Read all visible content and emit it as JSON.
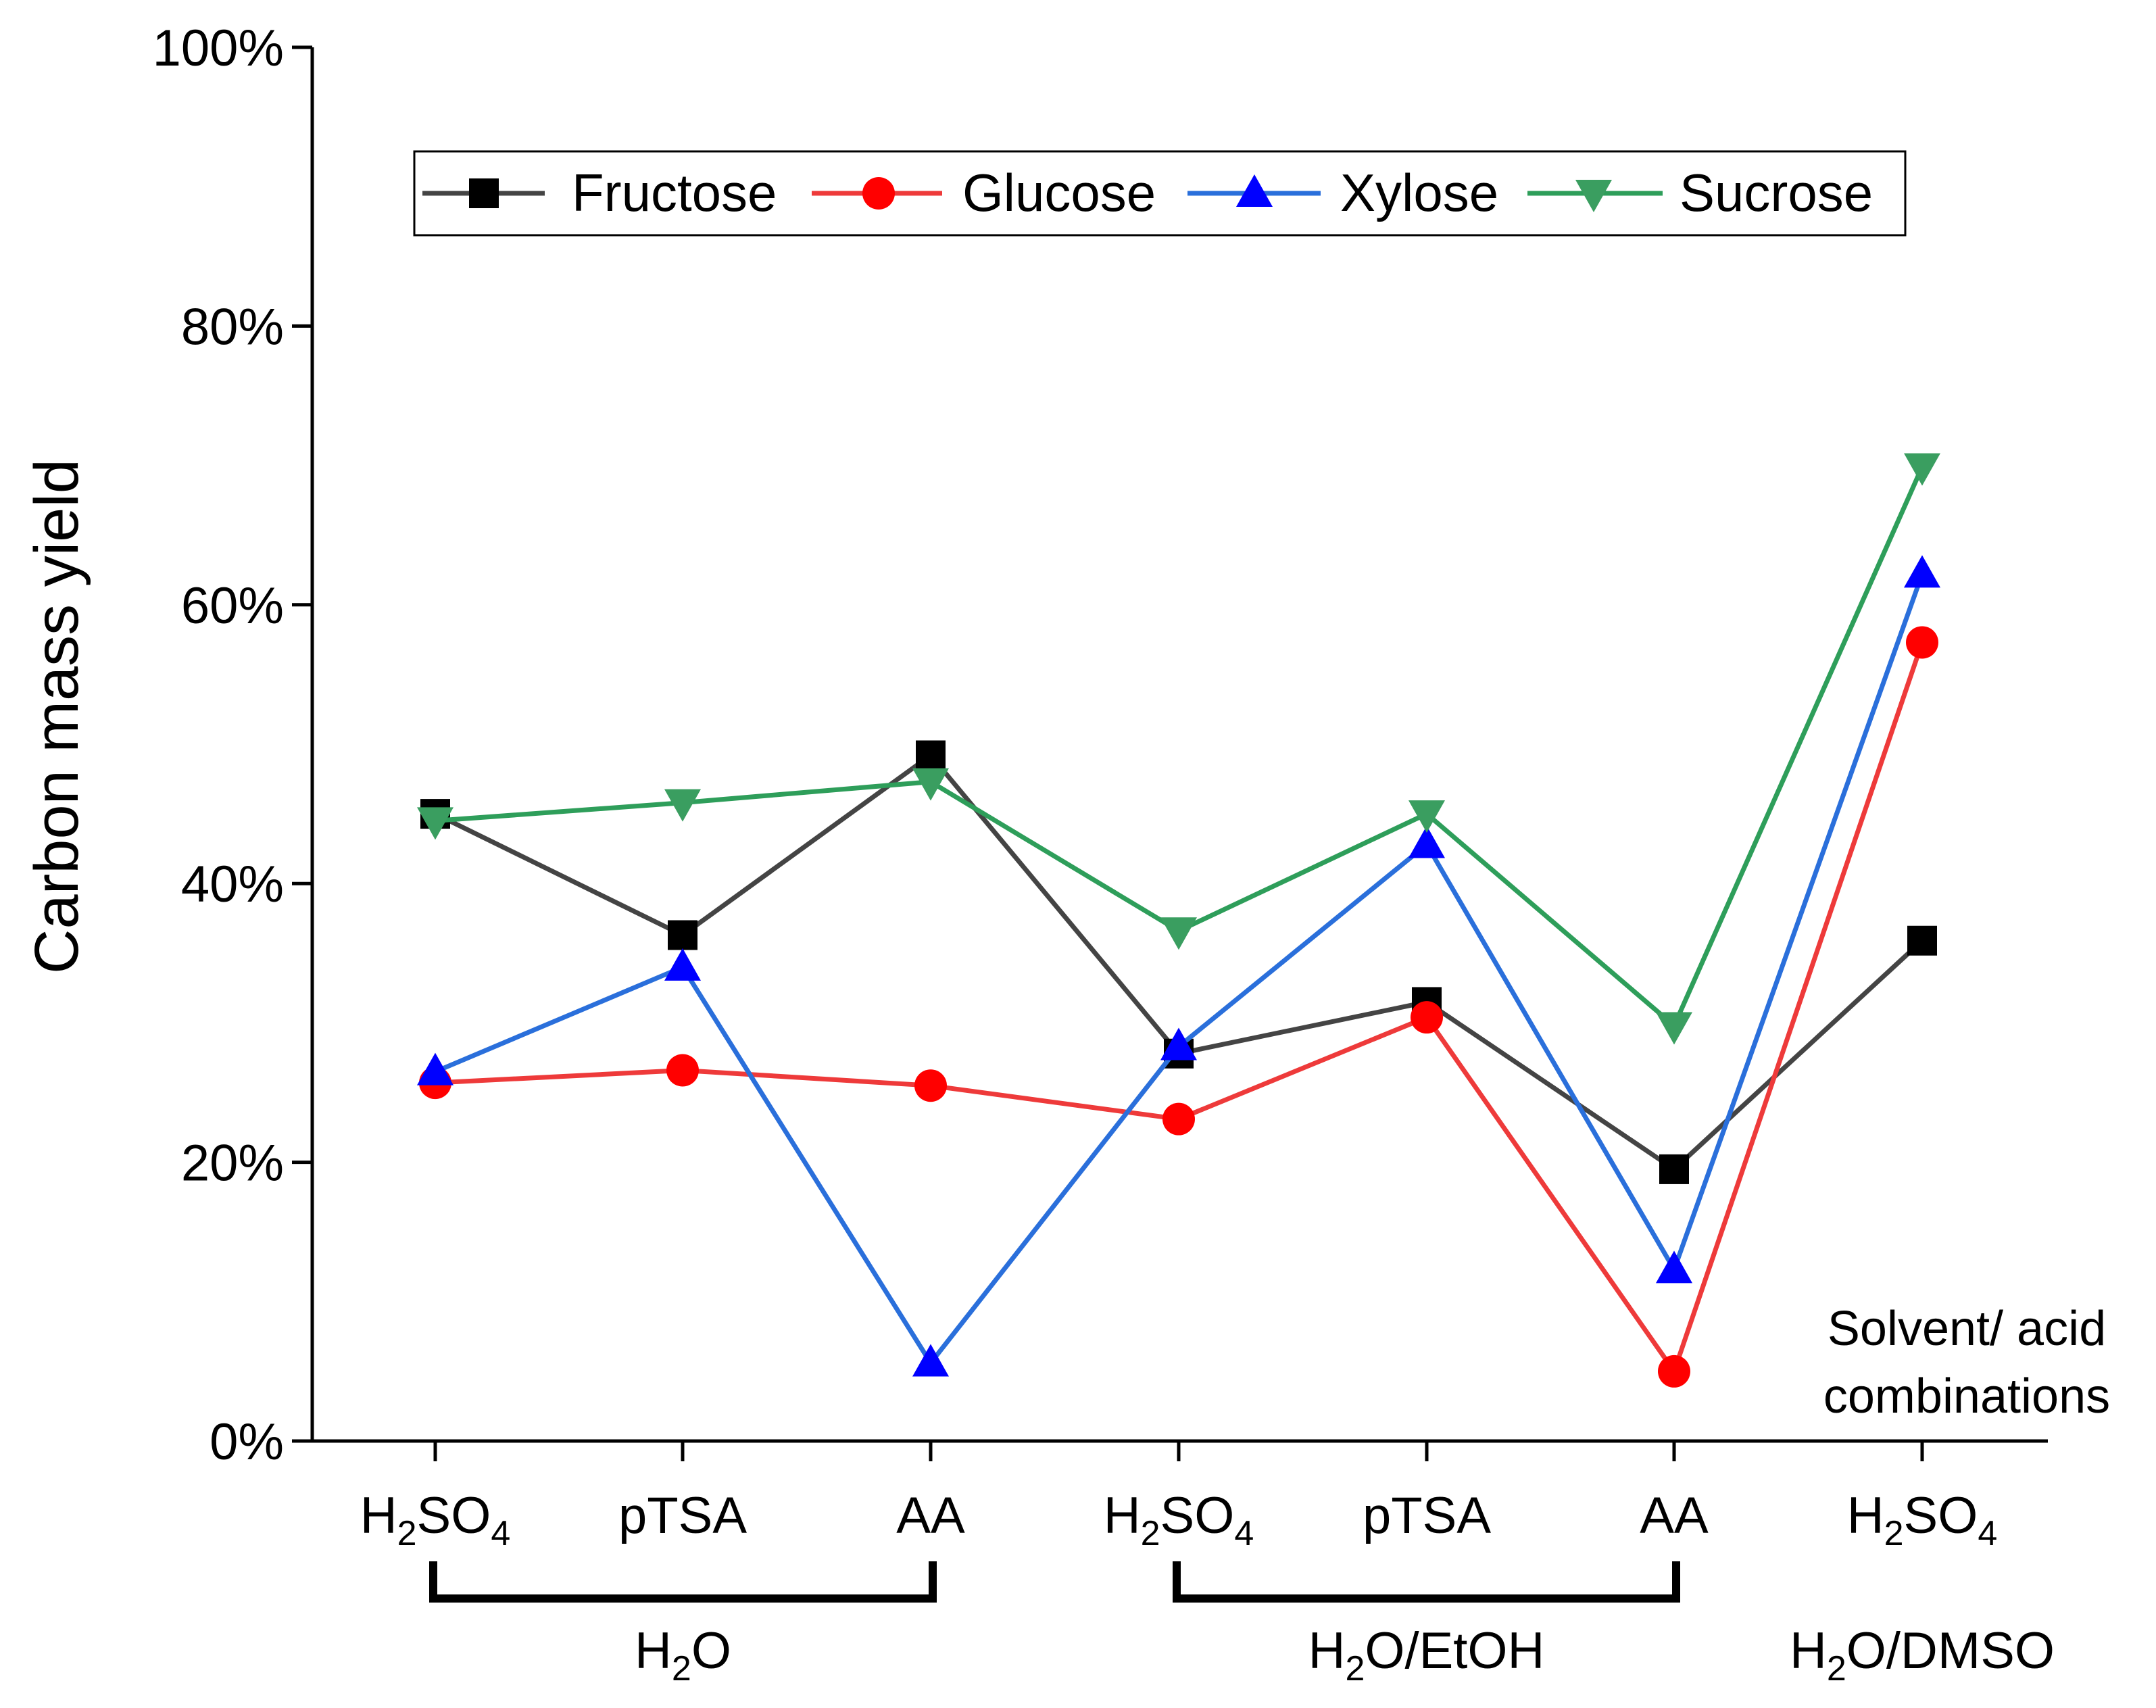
{
  "chart_data": {
    "type": "line",
    "ylabel": "Carbon mass yield",
    "ylim": [
      0,
      100
    ],
    "y_ticks": [
      0,
      20,
      40,
      60,
      80,
      100
    ],
    "y_tick_labels": [
      "0%",
      "20%",
      "40%",
      "60%",
      "80%",
      "100%"
    ],
    "categories": [
      {
        "main": "H",
        "sub": "2",
        "rest": "SO",
        "sub2": "4"
      },
      {
        "main": "pTSA"
      },
      {
        "main": "AA"
      },
      {
        "main": "H",
        "sub": "2",
        "rest": "SO",
        "sub2": "4"
      },
      {
        "main": "pTSA"
      },
      {
        "main": "AA"
      },
      {
        "main": "H",
        "sub": "2",
        "rest": "SO",
        "sub2": "4"
      }
    ],
    "groups": [
      {
        "pre": "H",
        "sub": "2",
        "post": "O",
        "from": 0,
        "to": 2,
        "bracket": true
      },
      {
        "pre": "H",
        "sub": "2",
        "post": "O/EtOH",
        "from": 3,
        "to": 5,
        "bracket": true
      },
      {
        "pre": "H",
        "sub": "2",
        "post": "O/DMSO",
        "from": 6,
        "to": 6,
        "bracket": false
      }
    ],
    "annotation": [
      "Solvent/ acid",
      "combinations"
    ],
    "legend_position": "top",
    "series": [
      {
        "name": "Fructose",
        "color": "#444444",
        "marker": "square",
        "marker_color": "#000000",
        "values": [
          45.0,
          36.3,
          49.2,
          27.8,
          31.5,
          19.5,
          35.9
        ]
      },
      {
        "name": "Glucose",
        "color": "#ee3a3a",
        "marker": "circle",
        "marker_color": "#ff0000",
        "values": [
          25.7,
          26.6,
          25.5,
          23.1,
          30.4,
          5.0,
          57.3
        ]
      },
      {
        "name": "Xylose",
        "color": "#2a6fdb",
        "marker": "triangle-up",
        "marker_color": "#0000ff",
        "values": [
          26.5,
          34.0,
          5.6,
          28.3,
          42.8,
          12.3,
          62.2
        ]
      },
      {
        "name": "Sucrose",
        "color": "#2e9e5a",
        "marker": "triangle-down",
        "marker_color": "#3a9e60",
        "values": [
          44.5,
          45.8,
          47.3,
          36.6,
          45.0,
          29.8,
          69.9
        ]
      }
    ]
  }
}
